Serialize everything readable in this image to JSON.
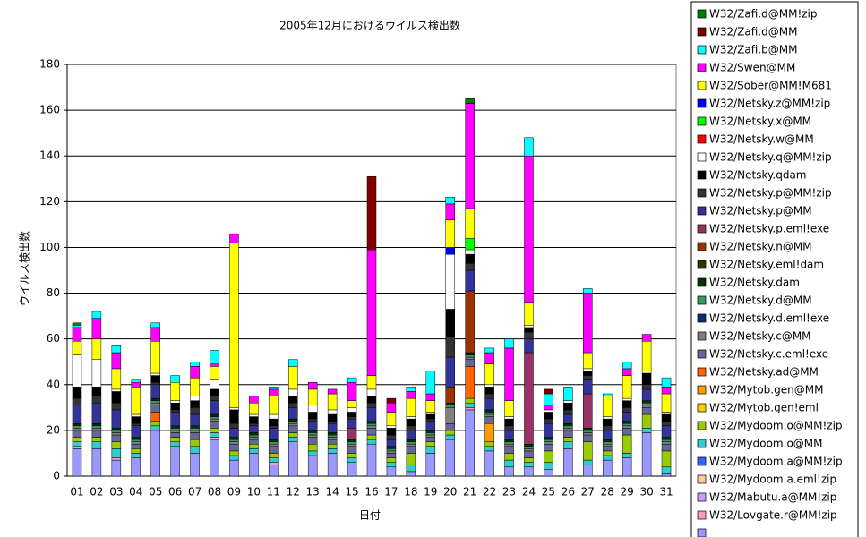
{
  "chart_data": {
    "type": "stacked_bar",
    "title": "2005年12月におけるウイルス検出数",
    "x_label": "日付",
    "y_label": "ウイルス検出数",
    "categories": [
      "01",
      "02",
      "03",
      "04",
      "05",
      "06",
      "07",
      "08",
      "09",
      "10",
      "11",
      "12",
      "13",
      "14",
      "15",
      "16",
      "17",
      "18",
      "19",
      "20",
      "21",
      "22",
      "23",
      "24",
      "25",
      "26",
      "27",
      "28",
      "29",
      "30",
      "31"
    ],
    "ylim": [
      0,
      180
    ],
    "yticks": [
      0,
      20,
      40,
      60,
      80,
      100,
      120,
      140,
      160,
      180
    ],
    "grid": true,
    "series": [
      {
        "name": "W32/Zafi.d@MM!zip",
        "color": "#008000",
        "values": [
          1,
          0,
          0,
          0,
          0,
          0,
          0,
          0,
          0,
          0,
          0,
          0,
          0,
          0,
          0,
          0,
          0,
          0,
          0,
          0,
          2,
          0,
          0,
          0,
          0,
          0,
          0,
          0,
          0,
          0,
          0
        ]
      },
      {
        "name": "W32/Zafi.d@MM",
        "color": "#800000",
        "values": [
          0,
          0,
          0,
          0,
          0,
          0,
          0,
          0,
          0,
          0,
          0,
          0,
          0,
          0,
          0,
          32,
          2,
          0,
          0,
          0,
          0,
          0,
          0,
          0,
          2,
          0,
          0,
          0,
          0,
          0,
          0
        ]
      },
      {
        "name": "W32/Zafi.b@MM",
        "color": "#00FFFF",
        "values": [
          1,
          3,
          3,
          1,
          2,
          3,
          2,
          6,
          0,
          0,
          1,
          3,
          0,
          0,
          2,
          0,
          0,
          2,
          10,
          3,
          0,
          2,
          4,
          8,
          5,
          6,
          2,
          1,
          3,
          0,
          4
        ]
      },
      {
        "name": "W32/Swen@MM",
        "color": "#FF00FF",
        "values": [
          6,
          9,
          7,
          2,
          6,
          0,
          5,
          1,
          4,
          3,
          3,
          0,
          3,
          2,
          8,
          55,
          4,
          3,
          3,
          7,
          46,
          5,
          23,
          64,
          2,
          0,
          26,
          0,
          3,
          3,
          3
        ]
      },
      {
        "name": "W32/Sober@MM!M681",
        "color": "#FFFF00",
        "values": [
          6,
          9,
          9,
          12,
          14,
          8,
          8,
          6,
          72,
          5,
          8,
          10,
          7,
          7,
          3,
          6,
          6,
          8,
          5,
          12,
          13,
          9,
          7,
          10,
          0,
          0,
          7,
          9,
          10,
          13,
          8
        ]
      },
      {
        "name": "W32/Netsky.z@MM!zip",
        "color": "#0000FF",
        "values": [
          0,
          0,
          0,
          0,
          0,
          0,
          0,
          0,
          0,
          0,
          0,
          0,
          0,
          0,
          0,
          0,
          0,
          0,
          0,
          3,
          0,
          0,
          0,
          0,
          0,
          0,
          0,
          0,
          0,
          0,
          0
        ]
      },
      {
        "name": "W32/Netsky.x@MM",
        "color": "#00FF00",
        "values": [
          0,
          0,
          0,
          0,
          0,
          0,
          0,
          0,
          0,
          0,
          0,
          0,
          0,
          0,
          0,
          0,
          0,
          0,
          0,
          0,
          5,
          0,
          0,
          0,
          0,
          0,
          0,
          0,
          0,
          0,
          0
        ]
      },
      {
        "name": "W32/Netsky.w@MM",
        "color": "#FF0000",
        "values": [
          0,
          0,
          0,
          0,
          0,
          0,
          0,
          0,
          0,
          0,
          0,
          0,
          0,
          0,
          0,
          0,
          0,
          0,
          0,
          0,
          0,
          0,
          0,
          0,
          0,
          0,
          0,
          0,
          0,
          0,
          0
        ]
      },
      {
        "name": "W32/Netsky.q@MM!zip",
        "color": "#FFFFFF",
        "values": [
          14,
          12,
          1,
          1,
          1,
          1,
          2,
          4,
          1,
          1,
          2,
          3,
          3,
          2,
          2,
          3,
          1,
          1,
          1,
          24,
          2,
          1,
          1,
          1,
          1,
          1,
          1,
          1,
          1,
          1,
          1
        ]
      },
      {
        "name": "W32/Netsky.qdam",
        "color": "#000000",
        "values": [
          5,
          4,
          5,
          3,
          3,
          3,
          3,
          3,
          6,
          3,
          3,
          3,
          3,
          3,
          2,
          3,
          3,
          3,
          2,
          12,
          4,
          3,
          3,
          2,
          3,
          3,
          2,
          3,
          3,
          5,
          3
        ]
      },
      {
        "name": "W32/Netsky.p@MM!zip",
        "color": "#333333",
        "values": [
          3,
          3,
          3,
          1,
          1,
          1,
          3,
          2,
          2,
          1,
          1,
          2,
          1,
          1,
          1,
          2,
          2,
          2,
          1,
          9,
          3,
          2,
          2,
          3,
          2,
          2,
          2,
          2,
          2,
          2,
          2
        ]
      },
      {
        "name": "W32/Netsky.p@MM",
        "color": "#333399",
        "values": [
          8,
          9,
          8,
          5,
          6,
          6,
          5,
          6,
          4,
          3,
          5,
          5,
          4,
          4,
          4,
          6,
          3,
          4,
          4,
          13,
          9,
          5,
          4,
          6,
          6,
          4,
          6,
          4,
          4,
          5,
          5
        ]
      },
      {
        "name": "W32/Netsky.p.eml!exe",
        "color": "#993366",
        "values": [
          0,
          0,
          0,
          0,
          0,
          0,
          0,
          0,
          0,
          0,
          0,
          0,
          0,
          0,
          5,
          0,
          0,
          0,
          0,
          0,
          0,
          0,
          0,
          40,
          0,
          0,
          15,
          0,
          0,
          0,
          0
        ]
      },
      {
        "name": "W32/Netsky.n@MM",
        "color": "#993300",
        "values": [
          0,
          0,
          0,
          0,
          0,
          0,
          0,
          0,
          0,
          0,
          0,
          0,
          0,
          0,
          0,
          0,
          0,
          0,
          0,
          7,
          27,
          0,
          0,
          0,
          0,
          0,
          0,
          0,
          0,
          0,
          0
        ]
      },
      {
        "name": "W32/Netsky.eml!dam",
        "color": "#333300",
        "values": [
          0,
          0,
          0,
          0,
          0,
          0,
          0,
          0,
          0,
          0,
          0,
          0,
          0,
          0,
          0,
          0,
          0,
          0,
          0,
          0,
          0,
          0,
          0,
          0,
          0,
          0,
          0,
          0,
          0,
          0,
          0
        ]
      },
      {
        "name": "W32/Netsky.dam",
        "color": "#003300",
        "values": [
          1,
          1,
          1,
          1,
          1,
          1,
          1,
          1,
          1,
          1,
          1,
          1,
          1,
          1,
          1,
          1,
          1,
          1,
          1,
          1,
          1,
          1,
          1,
          1,
          1,
          1,
          1,
          1,
          1,
          1,
          1
        ]
      },
      {
        "name": "W32/Netsky.d@MM",
        "color": "#339966",
        "values": [
          1,
          1,
          1,
          1,
          1,
          1,
          1,
          1,
          1,
          1,
          1,
          1,
          1,
          1,
          1,
          1,
          1,
          1,
          1,
          1,
          1,
          1,
          1,
          1,
          1,
          1,
          1,
          1,
          1,
          1,
          1
        ]
      },
      {
        "name": "W32/Netsky.d.eml!exe",
        "color": "#003366",
        "values": [
          0,
          0,
          0,
          0,
          0,
          0,
          0,
          0,
          0,
          0,
          0,
          0,
          0,
          0,
          0,
          0,
          0,
          0,
          0,
          0,
          0,
          0,
          0,
          0,
          0,
          0,
          0,
          0,
          0,
          0,
          0
        ]
      },
      {
        "name": "W32/Netsky.c@MM",
        "color": "#808080",
        "values": [
          1,
          1,
          1,
          1,
          1,
          1,
          1,
          1,
          1,
          1,
          1,
          1,
          1,
          1,
          1,
          1,
          1,
          1,
          1,
          7,
          1,
          1,
          1,
          1,
          1,
          1,
          1,
          1,
          1,
          1,
          1
        ]
      },
      {
        "name": "W32/Netsky.c.eml!exe",
        "color": "#666699",
        "values": [
          3,
          3,
          3,
          2,
          3,
          2,
          3,
          3,
          3,
          2,
          3,
          3,
          3,
          2,
          3,
          3,
          2,
          3,
          2,
          3,
          3,
          3,
          3,
          3,
          3,
          3,
          3,
          2,
          3,
          3,
          3
        ]
      },
      {
        "name": "W32/Netsky.ad@MM",
        "color": "#FF6600",
        "values": [
          0,
          0,
          0,
          0,
          4,
          0,
          0,
          0,
          0,
          0,
          0,
          0,
          0,
          0,
          0,
          0,
          0,
          0,
          0,
          0,
          14,
          0,
          0,
          0,
          0,
          0,
          0,
          0,
          0,
          0,
          0
        ]
      },
      {
        "name": "W32/Mytob.gen@MM",
        "color": "#FF9900",
        "values": [
          0,
          0,
          0,
          0,
          0,
          0,
          0,
          0,
          0,
          0,
          0,
          0,
          0,
          0,
          0,
          0,
          0,
          0,
          0,
          0,
          0,
          8,
          0,
          0,
          0,
          0,
          0,
          0,
          0,
          0,
          0
        ]
      },
      {
        "name": "W32/Mytob.gen!eml",
        "color": "#FFCC00",
        "values": [
          0,
          0,
          0,
          0,
          0,
          0,
          0,
          0,
          0,
          0,
          0,
          0,
          0,
          0,
          0,
          0,
          0,
          0,
          0,
          0,
          0,
          0,
          0,
          0,
          0,
          0,
          0,
          0,
          0,
          0,
          0
        ]
      },
      {
        "name": "W32/Mydoom.o@MM!zip",
        "color": "#99CC00",
        "values": [
          2,
          2,
          3,
          2,
          2,
          2,
          3,
          2,
          2,
          2,
          2,
          2,
          3,
          2,
          2,
          2,
          2,
          5,
          2,
          2,
          2,
          2,
          3,
          2,
          5,
          2,
          8,
          2,
          8,
          6,
          7
        ]
      },
      {
        "name": "W32/Mydoom.o@MM",
        "color": "#33CCCC",
        "values": [
          2,
          3,
          4,
          2,
          2,
          2,
          3,
          2,
          2,
          2,
          2,
          2,
          2,
          2,
          2,
          2,
          2,
          3,
          3,
          2,
          2,
          2,
          3,
          2,
          3,
          3,
          2,
          2,
          2,
          2,
          3
        ]
      },
      {
        "name": "W32/Mydoom.a@MM!zip",
        "color": "#3366FF",
        "values": [
          0,
          0,
          0,
          0,
          0,
          0,
          0,
          0,
          0,
          0,
          0,
          0,
          0,
          0,
          0,
          0,
          0,
          0,
          0,
          0,
          0,
          0,
          0,
          0,
          0,
          0,
          0,
          0,
          0,
          0,
          0
        ]
      },
      {
        "name": "W32/Mydoom.a.eml!zip",
        "color": "#FFCC99",
        "values": [
          0,
          0,
          0,
          0,
          0,
          0,
          0,
          0,
          0,
          0,
          0,
          0,
          0,
          0,
          0,
          0,
          0,
          0,
          0,
          0,
          0,
          0,
          0,
          0,
          0,
          0,
          0,
          0,
          0,
          0,
          0
        ]
      },
      {
        "name": "W32/Mabutu.a@MM!zip",
        "color": "#CC99FF",
        "values": [
          0,
          0,
          0,
          0,
          0,
          0,
          0,
          0,
          0,
          0,
          0,
          0,
          0,
          0,
          0,
          0,
          0,
          0,
          0,
          0,
          0,
          0,
          0,
          0,
          0,
          0,
          0,
          0,
          0,
          0,
          0
        ]
      },
      {
        "name": "W32/Lovgate.r@MM!zip",
        "color": "#FF99CC",
        "values": [
          1,
          0,
          1,
          0,
          0,
          0,
          0,
          1,
          0,
          0,
          1,
          0,
          0,
          0,
          0,
          0,
          0,
          0,
          0,
          0,
          1,
          0,
          0,
          0,
          0,
          0,
          0,
          0,
          0,
          0,
          0
        ]
      },
      {
        "color": "#9999FF",
        "values": [
          12,
          12,
          7,
          8,
          20,
          13,
          10,
          16,
          7,
          10,
          5,
          15,
          9,
          10,
          6,
          14,
          4,
          2,
          10,
          16,
          29,
          11,
          4,
          4,
          3,
          12,
          5,
          7,
          8,
          19,
          1
        ]
      }
    ]
  }
}
